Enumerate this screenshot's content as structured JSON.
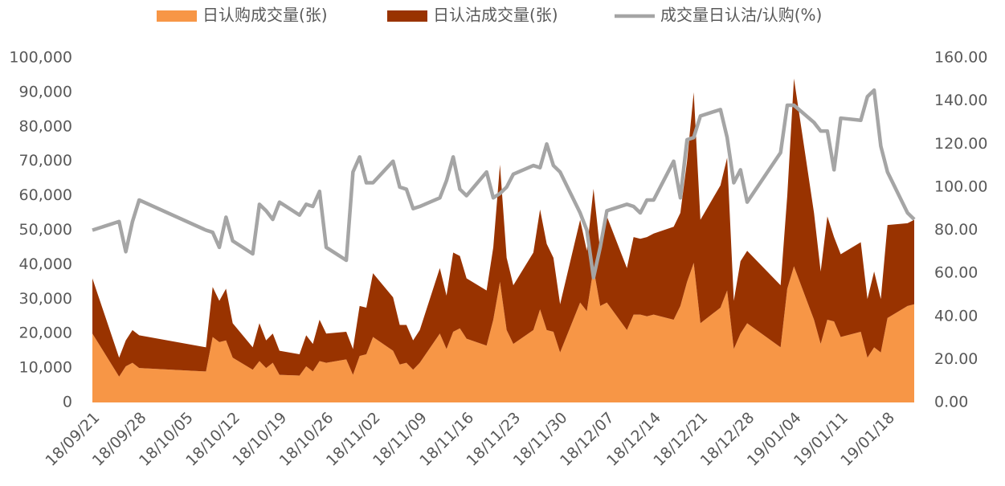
{
  "chart_data": {
    "type": "area",
    "x": [
      "18/09/21",
      "18/09/25",
      "18/09/26",
      "18/09/27",
      "18/09/28",
      "18/10/08",
      "18/10/09",
      "18/10/10",
      "18/10/11",
      "18/10/12",
      "18/10/15",
      "18/10/16",
      "18/10/17",
      "18/10/18",
      "18/10/19",
      "18/10/22",
      "18/10/23",
      "18/10/24",
      "18/10/25",
      "18/10/26",
      "18/10/29",
      "18/10/30",
      "18/10/31",
      "18/11/01",
      "18/11/02",
      "18/11/05",
      "18/11/06",
      "18/11/07",
      "18/11/08",
      "18/11/09",
      "18/11/12",
      "18/11/13",
      "18/11/14",
      "18/11/15",
      "18/11/16",
      "18/11/19",
      "18/11/20",
      "18/11/21",
      "18/11/22",
      "18/11/23",
      "18/11/26",
      "18/11/27",
      "18/11/28",
      "18/11/29",
      "18/11/30",
      "18/12/03",
      "18/12/04",
      "18/12/05",
      "18/12/06",
      "18/12/07",
      "18/12/10",
      "18/12/11",
      "18/12/12",
      "18/12/13",
      "18/12/14",
      "18/12/17",
      "18/12/18",
      "18/12/19",
      "18/12/20",
      "18/12/21",
      "18/12/24",
      "18/12/25",
      "18/12/26",
      "18/12/27",
      "18/12/28",
      "19/01/02",
      "19/01/03",
      "19/01/04",
      "19/01/07",
      "19/01/08",
      "19/01/09",
      "19/01/10",
      "19/01/11",
      "19/01/14",
      "19/01/15",
      "19/01/16",
      "19/01/17",
      "19/01/18",
      "19/01/21",
      "19/01/22"
    ],
    "series": [
      {
        "name": "日认购成交量(张)",
        "type": "area",
        "color": "#f79646",
        "values": [
          20000,
          7500,
          10500,
          11500,
          10000,
          9000,
          19000,
          17500,
          18000,
          13000,
          9500,
          12000,
          10000,
          11500,
          8000,
          7800,
          10500,
          9000,
          12000,
          11500,
          12500,
          8000,
          13500,
          14000,
          19000,
          15000,
          11000,
          11500,
          9500,
          11500,
          20000,
          15500,
          20500,
          21500,
          18500,
          16500,
          24000,
          35000,
          21000,
          17000,
          21000,
          27000,
          21000,
          20500,
          14500,
          29000,
          26500,
          39000,
          28000,
          29000,
          21000,
          25500,
          25500,
          25000,
          25500,
          24000,
          28000,
          35000,
          40500,
          23000,
          27500,
          32500,
          15500,
          20000,
          23000,
          16000,
          33000,
          39500,
          24000,
          17000,
          24000,
          23500,
          19000,
          20500,
          13000,
          16000,
          14500,
          24500,
          28000,
          28500
        ]
      },
      {
        "name": "日认沽成交量(张)",
        "type": "area",
        "color": "#993300",
        "values": [
          16000,
          5500,
          7500,
          9500,
          9500,
          7000,
          14500,
          12000,
          15000,
          10000,
          6500,
          11000,
          8000,
          8500,
          7000,
          6200,
          9000,
          8000,
          12000,
          8500,
          8000,
          7500,
          14500,
          13500,
          18500,
          15500,
          11500,
          11000,
          8500,
          9500,
          19000,
          15500,
          23000,
          21000,
          17500,
          16000,
          21000,
          34000,
          21000,
          17000,
          22500,
          29000,
          25000,
          21500,
          14000,
          24000,
          17500,
          23000,
          16000,
          25000,
          18000,
          22500,
          22000,
          23000,
          23500,
          27000,
          27000,
          35000,
          49500,
          30000,
          35500,
          38500,
          14000,
          21000,
          21000,
          18000,
          27000,
          54500,
          31000,
          21000,
          30000,
          24500,
          24000,
          26000,
          17000,
          22000,
          15500,
          27000,
          24000,
          24500
        ]
      },
      {
        "name": "成交量日认沽/认购(%)",
        "type": "line",
        "axis": "y2",
        "color": "#a5a5a5",
        "values": [
          80,
          84,
          70,
          84,
          94,
          80,
          79,
          72,
          86,
          75,
          69,
          92,
          89,
          85,
          93,
          87,
          92,
          91,
          98,
          72,
          66,
          107,
          114,
          102,
          102,
          112,
          100,
          99,
          90,
          91,
          95,
          103,
          114,
          99,
          96,
          107,
          95,
          97,
          100,
          106,
          110,
          109,
          120,
          110,
          107,
          88,
          80,
          58,
          72,
          89,
          92,
          91,
          88,
          94,
          94,
          112,
          95,
          122,
          123,
          133,
          136,
          123,
          102,
          108,
          93,
          116,
          138,
          138,
          130,
          126,
          126,
          108,
          132,
          131,
          142,
          145,
          119,
          107,
          88,
          85
        ]
      }
    ],
    "xlim": [
      "18/09/21",
      "19/01/22"
    ],
    "xticks": [
      "18/09/21",
      "18/09/28",
      "18/10/05",
      "18/10/12",
      "18/10/19",
      "18/10/26",
      "18/11/02",
      "18/11/09",
      "18/11/16",
      "18/11/23",
      "18/11/30",
      "18/12/07",
      "18/12/14",
      "18/12/21",
      "18/12/28",
      "19/01/04",
      "19/01/11",
      "19/01/18"
    ],
    "ylim": [
      0,
      100000
    ],
    "yticks": [
      0,
      {
        "value": 10000,
        "label": "10,000"
      },
      {
        "value": 20000,
        "label": "20,000"
      },
      {
        "value": 30000,
        "label": "30,000"
      },
      {
        "value": 40000,
        "label": "40,000"
      },
      {
        "value": 50000,
        "label": "50,000"
      },
      {
        "value": 60000,
        "label": "60,000"
      },
      {
        "value": 70000,
        "label": "70,000"
      },
      {
        "value": 80000,
        "label": "80,000"
      },
      {
        "value": 90000,
        "label": "90,000"
      },
      {
        "value": 100000,
        "label": "100,000"
      }
    ],
    "y2lim": [
      0,
      160
    ],
    "y2ticks": [
      {
        "value": 0,
        "label": "0.00"
      },
      {
        "value": 20,
        "label": "20.00"
      },
      {
        "value": 40,
        "label": "40.00"
      },
      {
        "value": 60,
        "label": "60.00"
      },
      {
        "value": 80,
        "label": "80.00"
      },
      {
        "value": 100,
        "label": "100.00"
      },
      {
        "value": 120,
        "label": "120.00"
      },
      {
        "value": 140,
        "label": "140.00"
      },
      {
        "value": 160,
        "label": "160.00"
      }
    ],
    "grid": false,
    "legend": "top"
  }
}
